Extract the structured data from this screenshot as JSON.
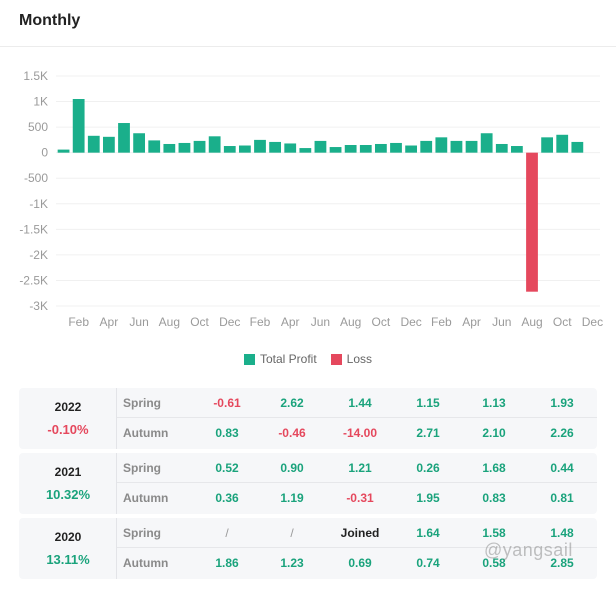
{
  "header": {
    "title": "Monthly"
  },
  "colors": {
    "profit": "#1aaf8b",
    "loss": "#e5485d",
    "grid": "#f0f0f0",
    "axis_text": "#9a9a9a"
  },
  "chart_data": {
    "type": "bar",
    "title": "",
    "xlabel": "",
    "ylabel": "",
    "ylim": [
      -3000,
      1500
    ],
    "yticks": [
      1500,
      1000,
      500,
      0,
      -500,
      -1000,
      -1500,
      -2000,
      -2500,
      -3000
    ],
    "ytick_labels": [
      "1.5K",
      "1K",
      "500",
      "0",
      "-500",
      "-1K",
      "-1.5K",
      "-2K",
      "-2.5K",
      "-3K"
    ],
    "categories": [
      "Jan",
      "Feb",
      "Mar",
      "Apr",
      "May",
      "Jun",
      "Jul",
      "Aug",
      "Sep",
      "Oct",
      "Nov",
      "Dec",
      "Jan",
      "Feb",
      "Mar",
      "Apr",
      "May",
      "Jun",
      "Jul",
      "Aug",
      "Sep",
      "Oct",
      "Nov",
      "Dec",
      "Jan",
      "Feb",
      "Mar",
      "Apr",
      "May",
      "Jun",
      "Jul",
      "Aug",
      "Sep",
      "Oct",
      "Nov",
      "Dec"
    ],
    "xtick_labels": [
      "Feb",
      "Apr",
      "Jun",
      "Aug",
      "Oct",
      "Dec",
      "Feb",
      "Apr",
      "Jun",
      "Aug",
      "Oct",
      "Dec",
      "Feb",
      "Apr",
      "Jun",
      "Aug",
      "Oct",
      "Dec"
    ],
    "series": [
      {
        "name": "Total Profit",
        "values": [
          60,
          1050,
          330,
          310,
          580,
          380,
          240,
          170,
          190,
          230,
          320,
          130,
          140,
          250,
          210,
          180,
          90,
          230,
          110,
          150,
          150,
          170,
          190,
          140,
          230,
          300,
          230,
          230,
          380,
          170,
          130,
          0,
          300,
          350,
          210,
          0
        ]
      },
      {
        "name": "Loss",
        "values": [
          0,
          0,
          0,
          0,
          0,
          0,
          0,
          0,
          0,
          0,
          0,
          0,
          0,
          0,
          0,
          0,
          0,
          0,
          0,
          0,
          0,
          0,
          0,
          0,
          0,
          0,
          0,
          0,
          0,
          0,
          0,
          -2720,
          0,
          0,
          0,
          0
        ]
      }
    ],
    "legend": {
      "placement": "bottom-center",
      "entries": [
        "Total Profit",
        "Loss"
      ]
    }
  },
  "table": [
    {
      "year": "2022",
      "total": "-0.10%",
      "total_sign": "neg",
      "spring_label": "Spring",
      "autumn_label": "Autumn",
      "spring": [
        {
          "v": "-0.61",
          "s": "neg"
        },
        {
          "v": "2.62",
          "s": "pos"
        },
        {
          "v": "1.44",
          "s": "pos"
        },
        {
          "v": "1.15",
          "s": "pos"
        },
        {
          "v": "1.13",
          "s": "pos"
        },
        {
          "v": "1.93",
          "s": "pos"
        }
      ],
      "autumn": [
        {
          "v": "0.83",
          "s": "pos"
        },
        {
          "v": "-0.46",
          "s": "neg"
        },
        {
          "v": "-14.00",
          "s": "neg"
        },
        {
          "v": "2.71",
          "s": "pos"
        },
        {
          "v": "2.10",
          "s": "pos"
        },
        {
          "v": "2.26",
          "s": "pos"
        }
      ]
    },
    {
      "year": "2021",
      "total": "10.32%",
      "total_sign": "pos",
      "spring_label": "Spring",
      "autumn_label": "Autumn",
      "spring": [
        {
          "v": "0.52",
          "s": "pos"
        },
        {
          "v": "0.90",
          "s": "pos"
        },
        {
          "v": "1.21",
          "s": "pos"
        },
        {
          "v": "0.26",
          "s": "pos"
        },
        {
          "v": "1.68",
          "s": "pos"
        },
        {
          "v": "0.44",
          "s": "pos"
        }
      ],
      "autumn": [
        {
          "v": "0.36",
          "s": "pos"
        },
        {
          "v": "1.19",
          "s": "pos"
        },
        {
          "v": "-0.31",
          "s": "neg"
        },
        {
          "v": "1.95",
          "s": "pos"
        },
        {
          "v": "0.83",
          "s": "pos"
        },
        {
          "v": "0.81",
          "s": "pos"
        }
      ]
    },
    {
      "year": "2020",
      "total": "13.11%",
      "total_sign": "pos",
      "spring_label": "Spring",
      "autumn_label": "Autumn",
      "spring": [
        {
          "v": "/",
          "s": "slash"
        },
        {
          "v": "/",
          "s": "slash"
        },
        {
          "v": "Joined",
          "s": "joined"
        },
        {
          "v": "1.64",
          "s": "pos"
        },
        {
          "v": "1.58",
          "s": "pos"
        },
        {
          "v": "1.48",
          "s": "pos"
        }
      ],
      "autumn": [
        {
          "v": "1.86",
          "s": "pos"
        },
        {
          "v": "1.23",
          "s": "pos"
        },
        {
          "v": "0.69",
          "s": "pos"
        },
        {
          "v": "0.74",
          "s": "pos"
        },
        {
          "v": "0.58",
          "s": "pos"
        },
        {
          "v": "2.85",
          "s": "pos"
        }
      ]
    }
  ],
  "watermark": "@yangsail"
}
